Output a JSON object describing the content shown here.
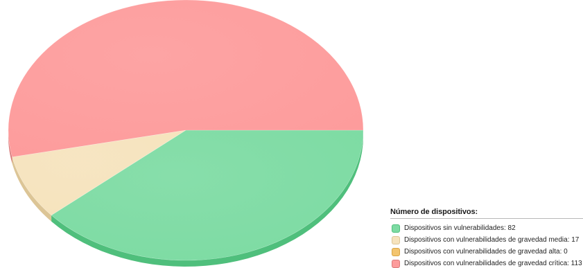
{
  "chart_data": {
    "type": "pie",
    "legend_title": "Número de dispositivos:",
    "legend_position": "bottom-right",
    "series": [
      {
        "name": "Dispositivos sin vulnerabilidades",
        "value": 82,
        "color": "#7ddba3",
        "shade": "#4fbf7c",
        "label": "Dispositivos sin vulnerabilidades: 82"
      },
      {
        "name": "Dispositivos con vulnerabilidades de gravedad media",
        "value": 17,
        "color": "#f6e3bd",
        "shade": "#dcc596",
        "label": "Dispositivos con vulnerabilidades de gravedad media: 17"
      },
      {
        "name": "Dispositivos con vulnerabilidades de gravedad alta",
        "value": 0,
        "color": "#f3c46e",
        "shade": "#d9a443",
        "label": "Dispositivos con vulnerabilidades de gravedad alta: 0"
      },
      {
        "name": "Dispositivos con vulnerabilidades de gravedad crítica",
        "value": 113,
        "color": "#fd9c9c",
        "shade": "#d97a7a",
        "label": "Dispositivos con vulnerabilidades de gravedad crítica: 113"
      }
    ]
  }
}
